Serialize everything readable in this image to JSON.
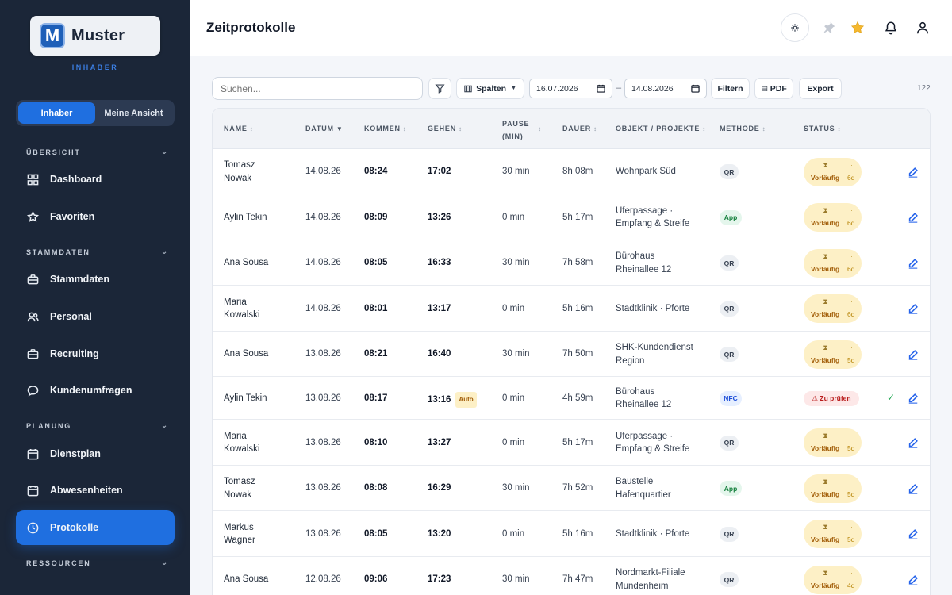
{
  "app": {
    "logo_letter": "M",
    "name": "Muster",
    "role": "INHABER"
  },
  "view_toggle": [
    {
      "label": "Inhaber",
      "active": true
    },
    {
      "label": "Meine Ansicht",
      "active": false
    }
  ],
  "sidebar": {
    "sections": [
      {
        "label": "ÜBERSICHT",
        "items": [
          {
            "label": "Dashboard",
            "icon": "grid-icon"
          },
          {
            "label": "Favoriten",
            "icon": "star-icon"
          }
        ]
      },
      {
        "label": "STAMMDATEN",
        "items": [
          {
            "label": "Stammdaten",
            "icon": "briefcase-icon"
          },
          {
            "label": "Personal",
            "icon": "users-icon"
          },
          {
            "label": "Recruiting",
            "icon": "briefcase-icon"
          },
          {
            "label": "Kundenumfragen",
            "icon": "chat-icon"
          }
        ]
      },
      {
        "label": "PLANUNG",
        "items": [
          {
            "label": "Dienstplan",
            "icon": "calendar-icon"
          },
          {
            "label": "Abwesenheiten",
            "icon": "calendar-icon"
          },
          {
            "label": "Protokolle",
            "icon": "clock-icon",
            "active": true
          }
        ]
      },
      {
        "label": "RESSOURCEN",
        "items": []
      }
    ]
  },
  "header": {
    "title": "Zeitprotokolle"
  },
  "toolbar": {
    "search_placeholder": "Suchen...",
    "columns_label": "Spalten",
    "date_from": "16.07.2026",
    "date_sep": "–",
    "date_to": "14.08.2026",
    "filter_label": "Filtern",
    "pdf_label": "PDF",
    "export_label": "Export",
    "count": "122"
  },
  "table": {
    "headers": [
      "NAME",
      "DATUM",
      "KOMMEN",
      "GEHEN",
      "PAUSE (MIN)",
      "DAUER",
      "OBJEKT / PROJEKTE",
      "METHODE",
      "STATUS"
    ],
    "header_pause_lines": [
      "PAUSE",
      "(MIN)"
    ],
    "rows": [
      {
        "name": [
          "Tomasz",
          "Nowak"
        ],
        "date": "14.08.26",
        "in": "08:24",
        "out": "17:02",
        "pause": "30 min",
        "dur": "8h 08m",
        "obj": [
          "Wohnpark Süd"
        ],
        "method": "QR",
        "status": "Vorläufig",
        "days": "6d"
      },
      {
        "name": [
          "Aylin Tekin"
        ],
        "date": "14.08.26",
        "in": "08:09",
        "out": "13:26",
        "pause": "0 min",
        "dur": "5h 17m",
        "obj": [
          "Uferpassage ·",
          "Empfang & Streife"
        ],
        "method": "App",
        "status": "Vorläufig",
        "days": "6d"
      },
      {
        "name": [
          "Ana Sousa"
        ],
        "date": "14.08.26",
        "in": "08:05",
        "out": "16:33",
        "pause": "30 min",
        "dur": "7h 58m",
        "obj": [
          "Bürohaus",
          "Rheinallee 12"
        ],
        "method": "QR",
        "status": "Vorläufig",
        "days": "6d"
      },
      {
        "name": [
          "Maria",
          "Kowalski"
        ],
        "date": "14.08.26",
        "in": "08:01",
        "out": "13:17",
        "pause": "0 min",
        "dur": "5h 16m",
        "obj": [
          "Stadtklinik · Pforte"
        ],
        "method": "QR",
        "status": "Vorläufig",
        "days": "6d"
      },
      {
        "name": [
          "Ana Sousa"
        ],
        "date": "13.08.26",
        "in": "08:21",
        "out": "16:40",
        "pause": "30 min",
        "dur": "7h 50m",
        "obj": [
          "SHK-Kundendienst",
          "Region"
        ],
        "method": "QR",
        "status": "Vorläufig",
        "days": "5d"
      },
      {
        "name": [
          "Aylin Tekin"
        ],
        "date": "13.08.26",
        "in": "08:17",
        "out": "13:16",
        "out_tag": "Auto",
        "pause": "0 min",
        "dur": "4h 59m",
        "obj": [
          "Bürohaus",
          "Rheinallee 12"
        ],
        "method": "NFC",
        "status": "⚠ Zu prüfen",
        "days": "",
        "check": true
      },
      {
        "name": [
          "Maria",
          "Kowalski"
        ],
        "date": "13.08.26",
        "in": "08:10",
        "out": "13:27",
        "pause": "0 min",
        "dur": "5h 17m",
        "obj": [
          "Uferpassage ·",
          "Empfang & Streife"
        ],
        "method": "QR",
        "status": "Vorläufig",
        "days": "5d"
      },
      {
        "name": [
          "Tomasz",
          "Nowak"
        ],
        "date": "13.08.26",
        "in": "08:08",
        "out": "16:29",
        "pause": "30 min",
        "dur": "7h 52m",
        "obj": [
          "Baustelle",
          "Hafenquartier"
        ],
        "method": "App",
        "status": "Vorläufig",
        "days": "5d"
      },
      {
        "name": [
          "Markus",
          "Wagner"
        ],
        "date": "13.08.26",
        "in": "08:05",
        "out": "13:20",
        "pause": "0 min",
        "dur": "5h 16m",
        "obj": [
          "Stadtklinik · Pforte"
        ],
        "method": "QR",
        "status": "Vorläufig",
        "days": "5d"
      },
      {
        "name": [
          "Ana Sousa"
        ],
        "date": "12.08.26",
        "in": "09:06",
        "out": "17:23",
        "pause": "30 min",
        "dur": "7h 47m",
        "obj": [
          "Nordmarkt-Filiale",
          "Mundenheim"
        ],
        "method": "QR",
        "status": "Vorläufig",
        "days": "4d"
      }
    ]
  },
  "colors": {
    "sidebar_bg": "#1b2638",
    "accent": "#1f6fe0",
    "status_pending": "#fdf0c6",
    "status_check": "#fde8e8"
  }
}
